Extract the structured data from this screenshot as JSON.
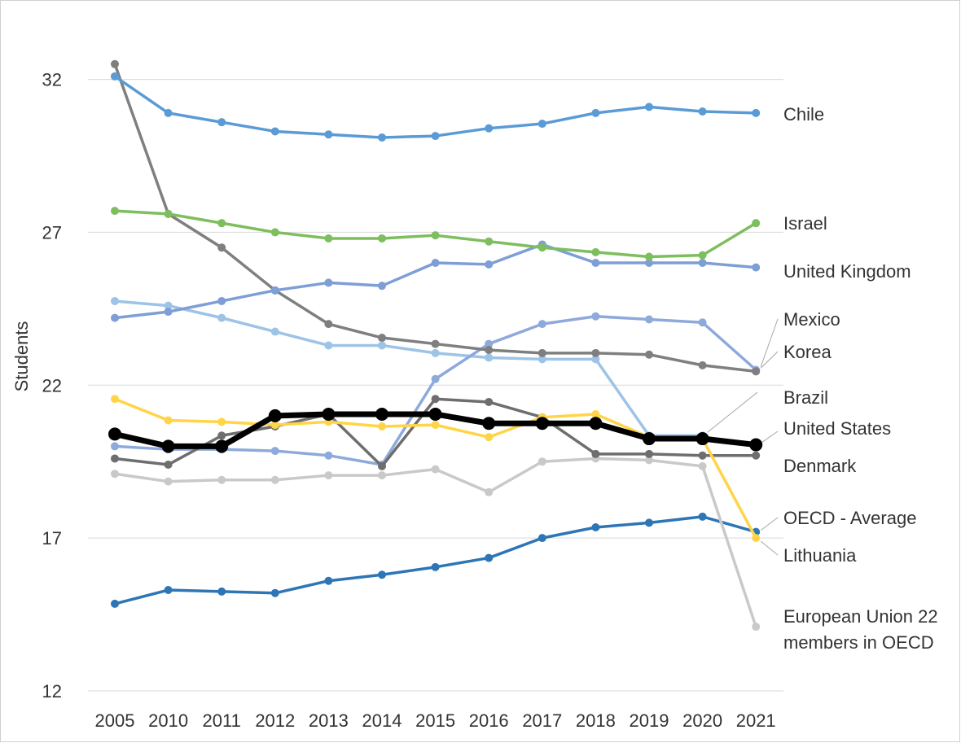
{
  "chart_data": {
    "type": "line",
    "title": "",
    "xlabel": "",
    "ylabel": "Students",
    "ylim": [
      12,
      33
    ],
    "yticks": [
      12,
      17,
      22,
      27,
      32
    ],
    "grid": true,
    "legend": "direct labels at right",
    "categories": [
      "2005",
      "2010",
      "2011",
      "2012",
      "2013",
      "2014",
      "2015",
      "2016",
      "2017",
      "2018",
      "2019",
      "2020",
      "2021"
    ],
    "series": [
      {
        "name": "Chile",
        "color": "#5B9BD5",
        "values": [
          32.1,
          30.9,
          30.6,
          30.3,
          30.2,
          30.1,
          30.15,
          30.4,
          30.55,
          30.9,
          31.1,
          30.95,
          30.9
        ]
      },
      {
        "name": "Israel",
        "color": "#7DBE5E",
        "values": [
          27.7,
          27.6,
          27.3,
          27.0,
          26.8,
          26.8,
          26.9,
          26.7,
          26.5,
          26.35,
          26.2,
          26.25,
          27.3
        ]
      },
      {
        "name": "United Kingdom",
        "color": "#7E9ED6",
        "values": [
          24.2,
          24.4,
          24.75,
          25.1,
          25.35,
          25.25,
          26.0,
          25.95,
          26.6,
          26.0,
          26.0,
          26.0,
          25.85
        ]
      },
      {
        "name": "Mexico",
        "color": "#8EA9DB",
        "values": [
          20.0,
          19.9,
          19.9,
          19.85,
          19.7,
          19.4,
          22.2,
          23.35,
          24.0,
          24.25,
          24.15,
          24.05,
          22.5
        ]
      },
      {
        "name": "Korea",
        "color": "#7F7F7F",
        "values": [
          32.5,
          27.6,
          26.5,
          25.1,
          24.0,
          23.55,
          23.35,
          23.15,
          23.05,
          23.05,
          23.0,
          22.65,
          22.45
        ]
      },
      {
        "name": "Brazil",
        "color": "#9DC3E6",
        "values": [
          24.75,
          24.6,
          24.2,
          23.75,
          23.3,
          23.3,
          23.05,
          22.9,
          22.85,
          22.85,
          20.35,
          20.35,
          null
        ]
      },
      {
        "name": "United States",
        "color": "#6E6E6E",
        "values": [
          19.6,
          19.4,
          20.35,
          20.65,
          21.05,
          19.35,
          21.55,
          21.45,
          20.95,
          19.75,
          19.75,
          19.7,
          19.7
        ]
      },
      {
        "name": "Denmark",
        "color": "#A5A5A5",
        "values": [
          null,
          null,
          null,
          null,
          null,
          null,
          null,
          null,
          null,
          null,
          null,
          null,
          null
        ]
      },
      {
        "name": "OECD - Average",
        "color": "#000000",
        "values": [
          20.4,
          20.0,
          20.0,
          21.0,
          21.05,
          21.05,
          21.05,
          20.75,
          20.75,
          20.75,
          20.25,
          20.25,
          20.05
        ]
      },
      {
        "name": "Lithuania",
        "color": "#FFD547",
        "values": [
          21.55,
          20.85,
          20.8,
          20.7,
          20.8,
          20.65,
          20.7,
          20.3,
          20.95,
          21.05,
          20.3,
          20.25,
          17.0
        ]
      },
      {
        "name": "European Union 22 members in OECD",
        "color": "#C9C9C9",
        "values": [
          19.1,
          18.85,
          18.9,
          18.9,
          19.05,
          19.05,
          19.25,
          18.5,
          19.5,
          19.6,
          19.55,
          19.35,
          14.1
        ]
      },
      {
        "name": "",
        "color": "#2E75B6",
        "values": [
          14.85,
          15.3,
          15.25,
          15.2,
          15.6,
          15.8,
          16.05,
          16.35,
          17.0,
          17.35,
          17.5,
          17.7,
          17.2
        ]
      }
    ],
    "labels": [
      {
        "text": "Chile",
        "anchor_series": "Chile"
      },
      {
        "text": "Israel",
        "anchor_series": "Israel"
      },
      {
        "text": "United Kingdom",
        "anchor_series": "United Kingdom"
      },
      {
        "text": "Mexico",
        "anchor_series": "Mexico"
      },
      {
        "text": "Korea",
        "anchor_series": "Korea"
      },
      {
        "text": "Brazil",
        "anchor_series": "Brazil"
      },
      {
        "text": "United States",
        "anchor_series": "OECD - Average"
      },
      {
        "text": "Denmark",
        "anchor_series": "United States"
      },
      {
        "text": "OECD - Average",
        "anchor_series": ""
      },
      {
        "text": "Lithuania",
        "anchor_series": "Lithuania"
      },
      {
        "text": "European Union 22",
        "anchor_series": "European Union 22 members in OECD"
      },
      {
        "text": "members in OECD",
        "anchor_series": ""
      }
    ]
  }
}
